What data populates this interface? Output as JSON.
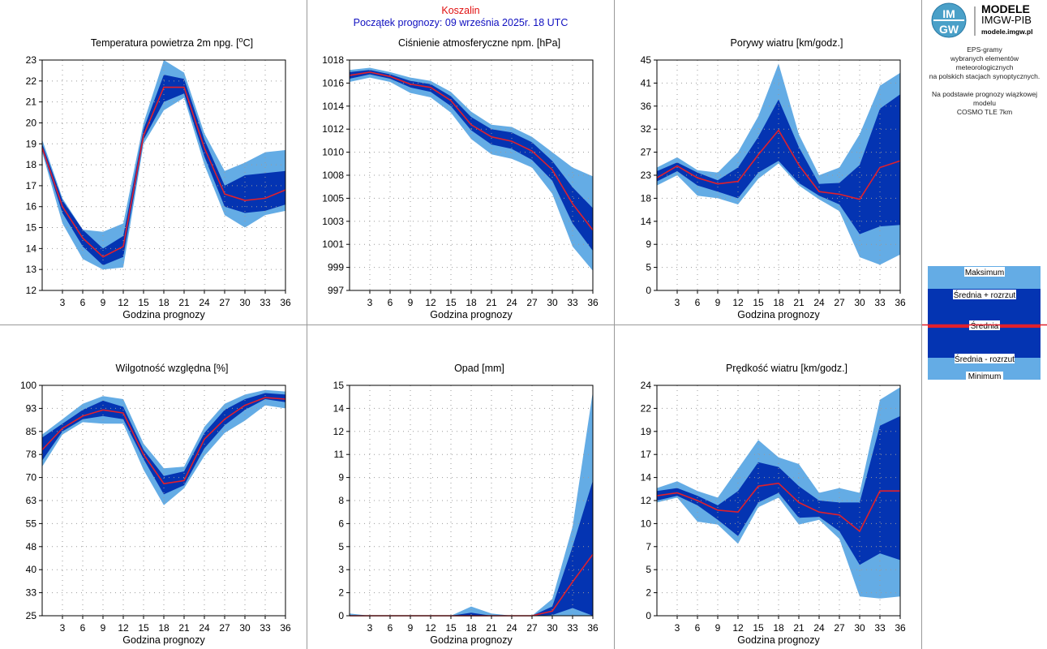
{
  "header": {
    "city": "Koszalin",
    "forecast_start": "Początek prognozy: 09 września 2025r. 18 UTC"
  },
  "logo": {
    "brand_top": "MODELE",
    "brand_mid": "IMGW-PIB",
    "url": "modele.imgw.pl"
  },
  "description": {
    "line1": "EPS-gramy",
    "line2": "wybranych elementów meteorologicznych",
    "line3": "na polskich stacjach  synoptycznych.",
    "line4": "Na podstawie prognozy wiązkowej modelu",
    "line5": "COSMO TLE 7km"
  },
  "legend": {
    "max": "Maksimum",
    "mean_plus": "Średnia + rozrzut",
    "mean": "Średnia",
    "mean_minus": "Średnia - rozrzut",
    "min": "Minimum"
  },
  "colors": {
    "light_band": "#64ace5",
    "dark_band": "#0434b2",
    "mean_line": "#e0202c",
    "grid_dots": "#9a9a9a"
  },
  "chart_data": [
    {
      "id": "temp",
      "type": "area",
      "title_pre": "Temperatura powietrza 2m npg. [",
      "title_sup": "o",
      "title_post": "C]",
      "xlabel": "Godzina prognozy",
      "x": [
        0,
        3,
        6,
        9,
        12,
        15,
        18,
        21,
        24,
        27,
        30,
        33,
        36
      ],
      "xticks": [
        3,
        6,
        9,
        12,
        15,
        18,
        21,
        24,
        27,
        30,
        33,
        36
      ],
      "ylim": [
        12,
        23
      ],
      "yticks": [
        "12",
        "13",
        "14",
        "15",
        "16",
        "17",
        "18",
        "19",
        "20",
        "21",
        "22",
        "23"
      ],
      "series": {
        "min": [
          18.6,
          15.2,
          13.5,
          13.0,
          13.1,
          19.0,
          20.6,
          21.2,
          18.0,
          15.6,
          15.0,
          15.6,
          15.8
        ],
        "mean_minus": [
          18.7,
          15.7,
          14.1,
          13.2,
          13.6,
          19.2,
          21.0,
          21.4,
          18.4,
          16.0,
          15.7,
          15.8,
          16.1
        ],
        "mean": [
          18.8,
          16.0,
          14.5,
          13.6,
          14.1,
          19.4,
          21.7,
          21.7,
          18.8,
          16.6,
          16.3,
          16.4,
          16.8
        ],
        "mean_plus": [
          19.0,
          16.3,
          14.9,
          14.0,
          14.6,
          19.7,
          22.3,
          22.1,
          19.2,
          17.0,
          17.5,
          17.6,
          17.7
        ],
        "max": [
          19.2,
          16.4,
          14.9,
          14.8,
          15.2,
          20.0,
          23.0,
          22.4,
          19.5,
          17.7,
          18.1,
          18.6,
          18.7
        ]
      }
    },
    {
      "id": "pressure",
      "type": "area",
      "title_pre": "Ciśnienie atmosferyczne npm. [hPa]",
      "title_sup": "",
      "title_post": "",
      "xlabel": "Godzina prognozy",
      "x": [
        0,
        3,
        6,
        9,
        12,
        15,
        18,
        21,
        24,
        27,
        30,
        33,
        36
      ],
      "xticks": [
        3,
        6,
        9,
        12,
        15,
        18,
        21,
        24,
        27,
        30,
        33,
        36
      ],
      "ylim": [
        997,
        1018
      ],
      "yticks": [
        "997",
        "999",
        "1001",
        "1003",
        "1005",
        "1008",
        "1010",
        "1012",
        "1014",
        "1016",
        "1018"
      ],
      "series": {
        "min": [
          1016.0,
          1016.4,
          1016.0,
          1015.0,
          1014.6,
          1013.2,
          1010.8,
          1009.4,
          1009.0,
          1008.2,
          1005.8,
          1001.0,
          998.8
        ],
        "mean_minus": [
          1016.3,
          1016.7,
          1016.3,
          1015.5,
          1015.1,
          1013.8,
          1011.6,
          1010.3,
          1009.9,
          1008.9,
          1007.0,
          1003.1,
          1000.6
        ],
        "mean": [
          1016.6,
          1016.9,
          1016.5,
          1015.8,
          1015.5,
          1014.3,
          1012.1,
          1011.0,
          1010.6,
          1009.7,
          1008.0,
          1004.9,
          1002.5
        ],
        "mean_plus": [
          1016.9,
          1017.1,
          1016.7,
          1016.1,
          1015.8,
          1014.7,
          1012.8,
          1011.7,
          1011.4,
          1010.5,
          1008.8,
          1006.4,
          1004.5
        ],
        "max": [
          1017.1,
          1017.3,
          1016.9,
          1016.4,
          1016.1,
          1015.1,
          1013.3,
          1012.1,
          1011.9,
          1011.0,
          1009.6,
          1008.2,
          1007.4
        ]
      }
    },
    {
      "id": "gusts",
      "type": "area",
      "title_pre": "Porywy wiatru [km/godz.]",
      "title_sup": "",
      "title_post": "",
      "xlabel": "Godzina prognozy",
      "x": [
        0,
        3,
        6,
        9,
        12,
        15,
        18,
        21,
        24,
        27,
        30,
        33,
        36
      ],
      "xticks": [
        3,
        6,
        9,
        12,
        15,
        18,
        21,
        24,
        27,
        30,
        33,
        36
      ],
      "ylim": [
        0,
        45
      ],
      "yticks": [
        "0",
        "5",
        "9",
        "14",
        "18",
        "23",
        "27",
        "32",
        "36",
        "41",
        "45"
      ],
      "series": {
        "min": [
          20.5,
          22.5,
          18.5,
          18.0,
          16.8,
          21.8,
          24.8,
          20.5,
          17.8,
          15.5,
          6.5,
          5.0,
          7.0
        ],
        "mean_minus": [
          21.3,
          23.3,
          20.5,
          19.3,
          18.0,
          23.0,
          25.3,
          21.0,
          18.5,
          16.8,
          11.0,
          12.5,
          12.8
        ],
        "mean": [
          22.0,
          24.3,
          22.0,
          20.8,
          21.3,
          26.5,
          31.3,
          24.5,
          19.3,
          18.8,
          17.8,
          24.0,
          25.3
        ],
        "mean_plus": [
          23.3,
          25.0,
          23.0,
          21.5,
          24.0,
          30.0,
          37.3,
          28.0,
          20.8,
          21.0,
          24.5,
          35.5,
          38.3
        ],
        "max": [
          24.0,
          26.0,
          23.5,
          23.0,
          27.0,
          34.0,
          44.3,
          30.5,
          22.5,
          24.0,
          30.5,
          40.0,
          42.5
        ]
      }
    },
    {
      "id": "humidity",
      "type": "area",
      "title_pre": "Wilgotność względna [%]",
      "title_sup": "",
      "title_post": "",
      "xlabel": "Godzina prognozy",
      "x": [
        0,
        3,
        6,
        9,
        12,
        15,
        18,
        21,
        24,
        27,
        30,
        33,
        36
      ],
      "xticks": [
        3,
        6,
        9,
        12,
        15,
        18,
        21,
        24,
        27,
        30,
        33,
        36
      ],
      "ylim": [
        25,
        100
      ],
      "yticks": [
        "25",
        "33",
        "40",
        "48",
        "55",
        "63",
        "70",
        "78",
        "85",
        "93",
        "100"
      ],
      "series": {
        "min": [
          73.5,
          84.0,
          88.0,
          87.5,
          87.5,
          72.5,
          61.0,
          66.5,
          77.0,
          84.5,
          88.5,
          93.5,
          92.5
        ],
        "mean_minus": [
          75.5,
          85.0,
          89.0,
          90.0,
          89.0,
          76.0,
          64.5,
          67.5,
          79.5,
          87.0,
          92.0,
          95.5,
          94.5
        ],
        "mean": [
          79.0,
          86.0,
          90.0,
          92.0,
          91.0,
          77.5,
          68.0,
          69.0,
          82.5,
          89.0,
          93.5,
          96.0,
          95.5
        ],
        "mean_plus": [
          83.0,
          87.5,
          92.0,
          95.0,
          93.0,
          79.0,
          70.5,
          72.0,
          84.5,
          92.0,
          95.5,
          97.5,
          97.0
        ],
        "max": [
          84.0,
          89.0,
          94.0,
          96.5,
          95.5,
          81.0,
          73.0,
          73.5,
          86.5,
          94.0,
          97.0,
          98.5,
          98.0
        ]
      }
    },
    {
      "id": "precip",
      "type": "area",
      "title_pre": "Opad [mm]",
      "title_sup": "",
      "title_post": "",
      "xlabel": "Godzina prognozy",
      "x": [
        0,
        3,
        6,
        9,
        12,
        15,
        18,
        21,
        24,
        27,
        30,
        33,
        36
      ],
      "xticks": [
        3,
        6,
        9,
        12,
        15,
        18,
        21,
        24,
        27,
        30,
        33,
        36
      ],
      "ylim": [
        0,
        15
      ],
      "yticks": [
        "0",
        "2",
        "3",
        "5",
        "6",
        "8",
        "9",
        "11",
        "12",
        "14",
        "15"
      ],
      "series": {
        "min": [
          0,
          0,
          0,
          0,
          0,
          0,
          0,
          0,
          0,
          0,
          0,
          0,
          0
        ],
        "mean_minus": [
          0,
          0,
          0,
          0,
          0,
          0,
          0,
          0,
          0,
          0,
          0.05,
          0.5,
          0
        ],
        "mean": [
          0,
          0,
          0,
          0,
          0,
          0,
          0,
          0,
          0,
          0,
          0.3,
          2.2,
          4.0
        ],
        "mean_plus": [
          0,
          0,
          0,
          0,
          0,
          0,
          0.2,
          0,
          0,
          0,
          0.6,
          4.5,
          8.8
        ],
        "max": [
          0.15,
          0,
          0,
          0,
          0,
          0,
          0.6,
          0.15,
          0,
          0,
          1.1,
          5.8,
          14.6
        ]
      }
    },
    {
      "id": "wind",
      "type": "area",
      "title_pre": "Prędkość wiatru [km/godz.]",
      "title_sup": "",
      "title_post": "",
      "xlabel": "Godzina prognozy",
      "x": [
        0,
        3,
        6,
        9,
        12,
        15,
        18,
        21,
        24,
        27,
        30,
        33,
        36
      ],
      "xticks": [
        3,
        6,
        9,
        12,
        15,
        18,
        21,
        24,
        27,
        30,
        33,
        36
      ],
      "ylim": [
        0,
        24
      ],
      "yticks": [
        "0",
        "2",
        "5",
        "7",
        "10",
        "12",
        "14",
        "17",
        "19",
        "22",
        "24"
      ],
      "series": {
        "min": [
          11.8,
          12.3,
          9.8,
          9.5,
          7.5,
          11.3,
          12.3,
          9.5,
          10.0,
          8.0,
          2.0,
          1.8,
          2.0
        ],
        "mean_minus": [
          12.0,
          12.5,
          11.5,
          10.0,
          8.3,
          11.8,
          12.8,
          10.2,
          10.3,
          8.8,
          5.3,
          6.5,
          5.8
        ],
        "mean": [
          12.5,
          12.8,
          12.0,
          11.0,
          10.8,
          13.5,
          13.8,
          11.8,
          10.8,
          10.5,
          8.8,
          13.0,
          13.0
        ],
        "mean_plus": [
          13.0,
          13.3,
          12.5,
          11.5,
          13.0,
          16.0,
          15.5,
          13.5,
          12.0,
          11.8,
          11.8,
          19.8,
          20.8
        ],
        "max": [
          13.3,
          14.0,
          13.0,
          12.3,
          15.3,
          18.3,
          16.5,
          15.8,
          12.8,
          13.3,
          12.8,
          22.5,
          23.8
        ]
      }
    }
  ]
}
